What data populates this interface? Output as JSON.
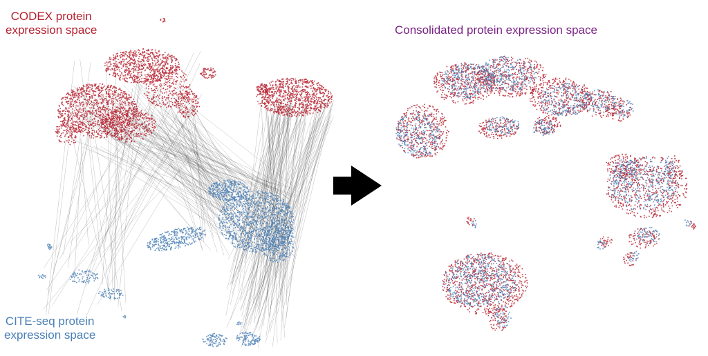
{
  "labels": {
    "codex_line1": "CODEX protein",
    "codex_line2": "expression space",
    "cite_line1": "CITE-seq protein",
    "cite_line2": "expression space",
    "consolidated": "Consolidated protein expression space"
  },
  "colors": {
    "codex": "#b5202e",
    "cite": "#4a7fb5",
    "consolidated_title": "#7a2386",
    "links": "#444444",
    "arrow": "#000000"
  },
  "icons": {
    "arrow": "right-arrow-icon"
  }
}
